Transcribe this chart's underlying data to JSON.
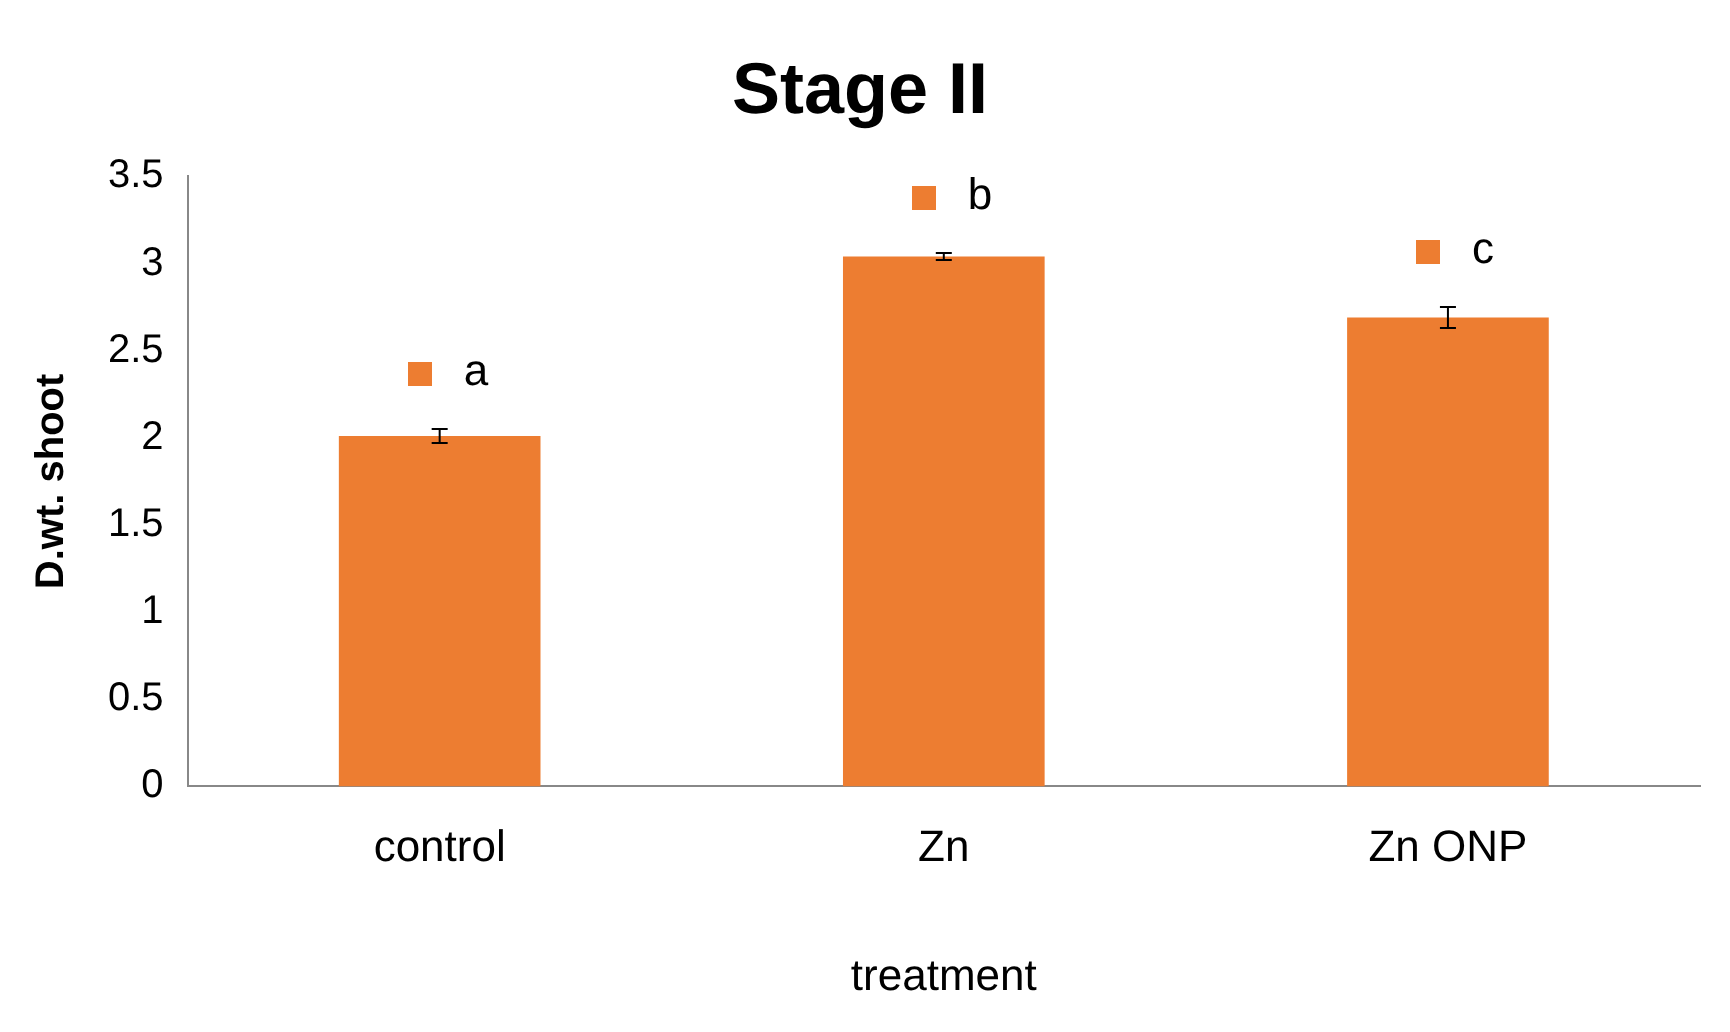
{
  "chart_data": {
    "type": "bar",
    "title": "Stage II",
    "xlabel": "treatment",
    "ylabel": "D.wt. shoot",
    "categories": [
      "control",
      "Zn",
      "Zn ONP"
    ],
    "series": [
      {
        "color": "#ed7d31",
        "values": [
          2.01,
          3.04,
          2.69
        ],
        "errors": [
          0.04,
          0.02,
          0.06
        ]
      }
    ],
    "ylim": [
      0,
      3.5
    ],
    "yticks": [
      0,
      0.5,
      1,
      1.5,
      2,
      2.5,
      3,
      3.5
    ],
    "grid": false,
    "legend": false,
    "annotations": [
      "a",
      "b",
      "c"
    ]
  }
}
